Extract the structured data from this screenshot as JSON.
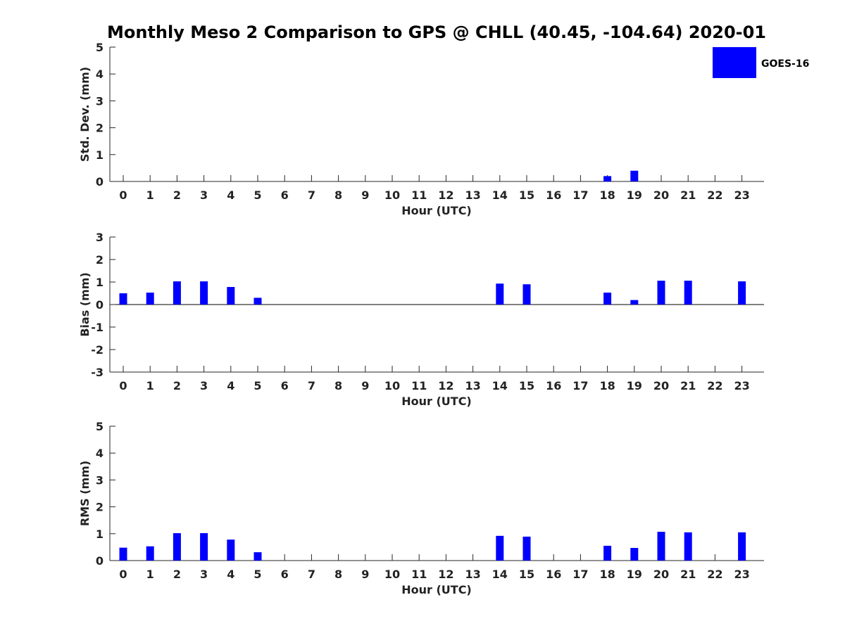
{
  "chart_data": {
    "title": "Monthly Meso 2 Comparison to GPS @ CHLL (40.45, -104.64) 2020-01",
    "legend": {
      "label": "GOES-16",
      "color": "#0000ff",
      "placement": "top-right"
    },
    "bar_color": "#0000ff",
    "hours": [
      "0",
      "1",
      "2",
      "3",
      "4",
      "5",
      "6",
      "7",
      "8",
      "9",
      "10",
      "11",
      "12",
      "13",
      "14",
      "15",
      "16",
      "17",
      "18",
      "19",
      "20",
      "21",
      "22",
      "23"
    ],
    "panels": [
      {
        "type": "bar",
        "ylabel": "Std. Dev. (mm)",
        "xlabel": "Hour (UTC)",
        "ylim": [
          0,
          5
        ],
        "yticks": [
          "0",
          "1",
          "2",
          "3",
          "4",
          "5"
        ],
        "values": [
          null,
          null,
          null,
          null,
          null,
          null,
          null,
          null,
          null,
          null,
          null,
          null,
          null,
          null,
          null,
          null,
          null,
          null,
          0.2,
          0.4,
          null,
          null,
          null,
          null
        ]
      },
      {
        "type": "bar",
        "ylabel": "Bias (mm)",
        "xlabel": "Hour (UTC)",
        "ylim": [
          -3,
          3
        ],
        "yticks": [
          "-3",
          "-2",
          "-1",
          "0",
          "1",
          "2",
          "3"
        ],
        "values": [
          0.5,
          0.53,
          1.03,
          1.03,
          0.78,
          0.3,
          null,
          null,
          null,
          null,
          null,
          null,
          null,
          null,
          0.93,
          0.9,
          null,
          null,
          0.53,
          0.2,
          1.06,
          1.06,
          null,
          1.03
        ]
      },
      {
        "type": "bar",
        "ylabel": "RMS (mm)",
        "xlabel": "Hour (UTC)",
        "ylim": [
          0,
          5
        ],
        "yticks": [
          "0",
          "1",
          "2",
          "3",
          "4",
          "5"
        ],
        "values": [
          0.48,
          0.53,
          1.02,
          1.02,
          0.78,
          0.31,
          null,
          null,
          null,
          null,
          null,
          null,
          null,
          null,
          0.92,
          0.89,
          null,
          null,
          0.55,
          0.47,
          1.07,
          1.05,
          null,
          1.05
        ]
      }
    ]
  }
}
